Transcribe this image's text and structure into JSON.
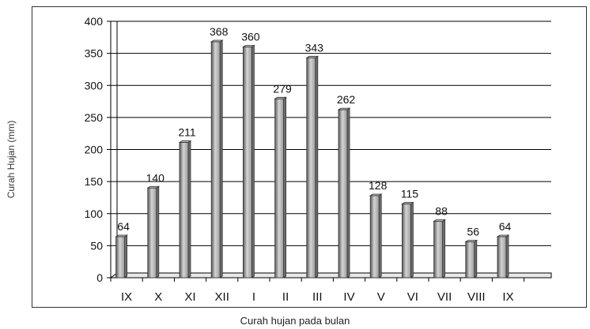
{
  "chart_data": {
    "type": "bar",
    "categories": [
      "IX",
      "X",
      "XI",
      "XII",
      "I",
      "II",
      "III",
      "IV",
      "V",
      "VI",
      "VII",
      "VIII",
      "IX"
    ],
    "values": [
      64,
      140,
      211,
      368,
      360,
      279,
      343,
      262,
      128,
      115,
      88,
      56,
      64
    ],
    "data_labels": [
      "64",
      "140",
      "211",
      "368",
      "360",
      "279",
      "343",
      "262",
      "128",
      "115",
      "88",
      "56",
      "64"
    ],
    "xlabel": "Curah hujan pada bulan",
    "ylabel": "Curah Hujan (mm)",
    "ylim": [
      0,
      400
    ],
    "yticks": [
      "0",
      "50",
      "100",
      "150",
      "200",
      "250",
      "300",
      "350",
      "400"
    ],
    "grid": true,
    "legend": "none",
    "colors": {
      "bar": "#9a9a9a",
      "bar_light": "#d4d4d4",
      "bar_dark": "#5a5a5a",
      "grid": "#000000"
    }
  }
}
